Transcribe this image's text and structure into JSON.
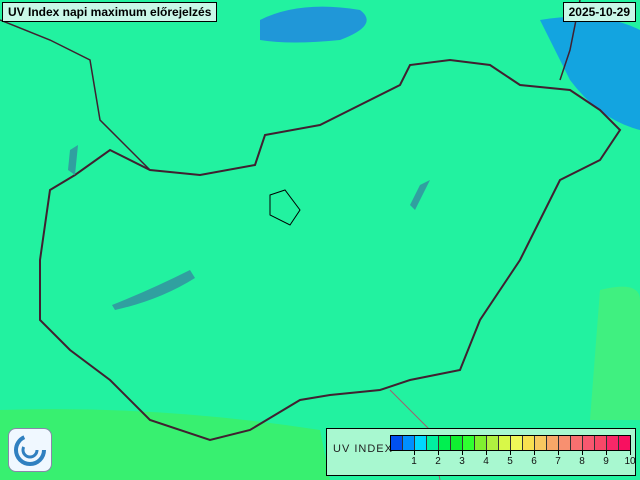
{
  "title": "UV Index napi maximum előrejelzés",
  "date": "2025-10-29",
  "legend": {
    "label": "UV INDEX",
    "colors": [
      "#0050f0",
      "#0090ff",
      "#00d8ff",
      "#00f0a0",
      "#00f050",
      "#10f030",
      "#30ff30",
      "#80f030",
      "#b0f040",
      "#d8f848",
      "#f0f858",
      "#f8e050",
      "#f8c860",
      "#f8a868",
      "#f89070",
      "#f87070",
      "#f85870",
      "#f84868",
      "#f82868",
      "#f81060"
    ],
    "ticks": [
      "1",
      "2",
      "3",
      "4",
      "5",
      "6",
      "7",
      "8",
      "9",
      "10"
    ]
  },
  "colors": {
    "base": "#20f0a0",
    "south": "#30f070",
    "border": "#402030"
  }
}
